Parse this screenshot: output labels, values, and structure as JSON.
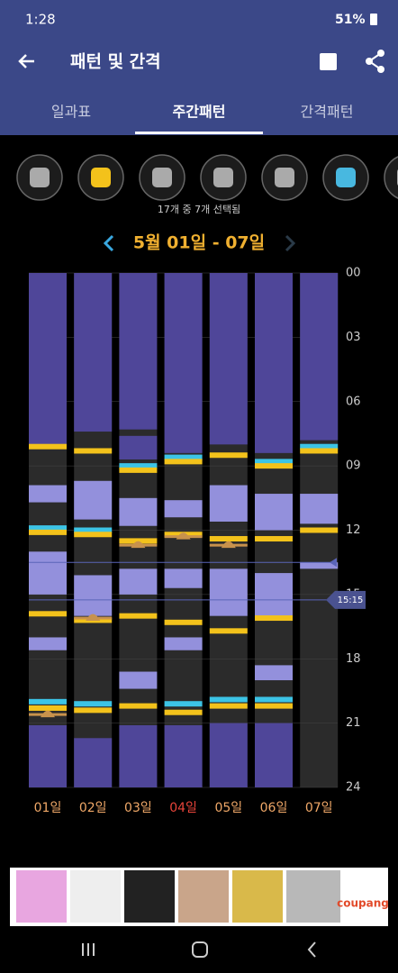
{
  "status_bar": {
    "time": "1:28",
    "battery": "51%"
  },
  "header": {
    "title": "패턴 및 간격"
  },
  "tabs": [
    "일과표",
    "주간패턴",
    "간격패턴"
  ],
  "active_tab": 1,
  "selection_caption": "17개 중 7개 선택됨",
  "week_range": "5월 01일 - 07일",
  "chart": {
    "ylim": [
      0,
      24
    ],
    "yticks": [
      {
        "value": 0,
        "label": "00"
      },
      {
        "value": 3,
        "label": "03"
      },
      {
        "value": 6,
        "label": "06"
      },
      {
        "value": 9,
        "label": "09"
      },
      {
        "value": 12,
        "label": "12"
      },
      {
        "value": 15,
        "label": "15"
      },
      {
        "value": 18,
        "label": "18"
      },
      {
        "value": 21,
        "label": "21"
      },
      {
        "value": 24,
        "label": "24"
      }
    ],
    "markers": [
      {
        "value": 13.5
      },
      {
        "value": 15.25,
        "label": "15:15"
      }
    ],
    "colors": {
      "night": "#4f4699",
      "nap": "#9390dc",
      "feed": "#f3c21b",
      "diaper": "#3cc4e6",
      "poop": "#c8924c"
    },
    "days": [
      {
        "label": "01일",
        "color": "#f0a868",
        "blocks": [
          {
            "kind": "night",
            "start": 0,
            "end": 8.0
          },
          {
            "kind": "nap",
            "start": 9.9,
            "end": 10.7
          },
          {
            "kind": "nap",
            "start": 13.0,
            "end": 15.0
          },
          {
            "kind": "nap",
            "start": 17.0,
            "end": 17.6
          },
          {
            "kind": "night",
            "start": 21.1,
            "end": 24
          }
        ],
        "events": [
          {
            "kind": "feed",
            "at": 8.1
          },
          {
            "kind": "diaper",
            "at": 11.9
          },
          {
            "kind": "feed",
            "at": 12.1
          },
          {
            "kind": "feed",
            "at": 15.9
          },
          {
            "kind": "diaper",
            "at": 20.0
          },
          {
            "kind": "feed",
            "at": 20.3
          },
          {
            "kind": "poop",
            "at": 20.6
          }
        ]
      },
      {
        "label": "02일",
        "color": "#f0a868",
        "blocks": [
          {
            "kind": "night",
            "start": 0,
            "end": 7.4
          },
          {
            "kind": "nap",
            "start": 9.7,
            "end": 11.5
          },
          {
            "kind": "nap",
            "start": 14.1,
            "end": 16.0
          },
          {
            "kind": "night",
            "start": 21.7,
            "end": 24
          }
        ],
        "events": [
          {
            "kind": "feed",
            "at": 8.3
          },
          {
            "kind": "diaper",
            "at": 12.0
          },
          {
            "kind": "feed",
            "at": 12.2
          },
          {
            "kind": "feed",
            "at": 16.2
          },
          {
            "kind": "poop",
            "at": 16.1
          },
          {
            "kind": "diaper",
            "at": 20.1
          },
          {
            "kind": "feed",
            "at": 20.4
          }
        ]
      },
      {
        "label": "03일",
        "color": "#f0a868",
        "blocks": [
          {
            "kind": "night",
            "start": 0,
            "end": 7.3
          },
          {
            "kind": "night",
            "start": 7.6,
            "end": 8.7
          },
          {
            "kind": "nap",
            "start": 10.5,
            "end": 11.8
          },
          {
            "kind": "nap",
            "start": 13.8,
            "end": 15.0
          },
          {
            "kind": "nap",
            "start": 18.6,
            "end": 19.4
          },
          {
            "kind": "night",
            "start": 21.1,
            "end": 24
          }
        ],
        "events": [
          {
            "kind": "diaper",
            "at": 9.0
          },
          {
            "kind": "feed",
            "at": 9.2
          },
          {
            "kind": "feed",
            "at": 12.5
          },
          {
            "kind": "poop",
            "at": 12.7
          },
          {
            "kind": "feed",
            "at": 16.0
          },
          {
            "kind": "feed",
            "at": 20.2
          }
        ]
      },
      {
        "label": "04일",
        "color": "#e8443a",
        "blocks": [
          {
            "kind": "night",
            "start": 0,
            "end": 8.4
          },
          {
            "kind": "nap",
            "start": 10.6,
            "end": 11.4
          },
          {
            "kind": "nap",
            "start": 13.8,
            "end": 14.7
          },
          {
            "kind": "nap",
            "start": 17.0,
            "end": 17.6
          },
          {
            "kind": "night",
            "start": 21.1,
            "end": 24
          }
        ],
        "events": [
          {
            "kind": "diaper",
            "at": 8.6
          },
          {
            "kind": "feed",
            "at": 8.8
          },
          {
            "kind": "feed",
            "at": 12.2
          },
          {
            "kind": "poop",
            "at": 12.3
          },
          {
            "kind": "feed",
            "at": 16.3
          },
          {
            "kind": "diaper",
            "at": 20.1
          },
          {
            "kind": "feed",
            "at": 20.5
          }
        ]
      },
      {
        "label": "05일",
        "color": "#f0a868",
        "blocks": [
          {
            "kind": "night",
            "start": 0,
            "end": 8.0
          },
          {
            "kind": "nap",
            "start": 9.9,
            "end": 11.6
          },
          {
            "kind": "nap",
            "start": 13.8,
            "end": 16.0
          },
          {
            "kind": "night",
            "start": 21.0,
            "end": 24
          }
        ],
        "events": [
          {
            "kind": "feed",
            "at": 8.5
          },
          {
            "kind": "feed",
            "at": 12.4
          },
          {
            "kind": "poop",
            "at": 12.7
          },
          {
            "kind": "feed",
            "at": 16.7
          },
          {
            "kind": "diaper",
            "at": 19.9
          },
          {
            "kind": "feed",
            "at": 20.2
          }
        ]
      },
      {
        "label": "06일",
        "color": "#f0a868",
        "blocks": [
          {
            "kind": "night",
            "start": 0,
            "end": 8.4
          },
          {
            "kind": "nap",
            "start": 10.3,
            "end": 12.0
          },
          {
            "kind": "nap",
            "start": 14.0,
            "end": 16.0
          },
          {
            "kind": "nap",
            "start": 18.3,
            "end": 19.0
          },
          {
            "kind": "night",
            "start": 21.0,
            "end": 24
          }
        ],
        "events": [
          {
            "kind": "diaper",
            "at": 8.8
          },
          {
            "kind": "feed",
            "at": 9.0
          },
          {
            "kind": "feed",
            "at": 12.4
          },
          {
            "kind": "feed",
            "at": 16.1
          },
          {
            "kind": "diaper",
            "at": 19.9
          },
          {
            "kind": "feed",
            "at": 20.2
          }
        ]
      },
      {
        "label": "07일",
        "color": "#f0a868",
        "blocks": [
          {
            "kind": "night",
            "start": 0,
            "end": 7.8
          },
          {
            "kind": "nap",
            "start": 10.3,
            "end": 11.7
          },
          {
            "kind": "nap",
            "start": 13.5,
            "end": 13.8
          }
        ],
        "events": [
          {
            "kind": "diaper",
            "at": 8.1
          },
          {
            "kind": "feed",
            "at": 8.3
          },
          {
            "kind": "feed",
            "at": 12.0
          }
        ]
      }
    ]
  },
  "ad": {
    "brand": "coupang"
  }
}
